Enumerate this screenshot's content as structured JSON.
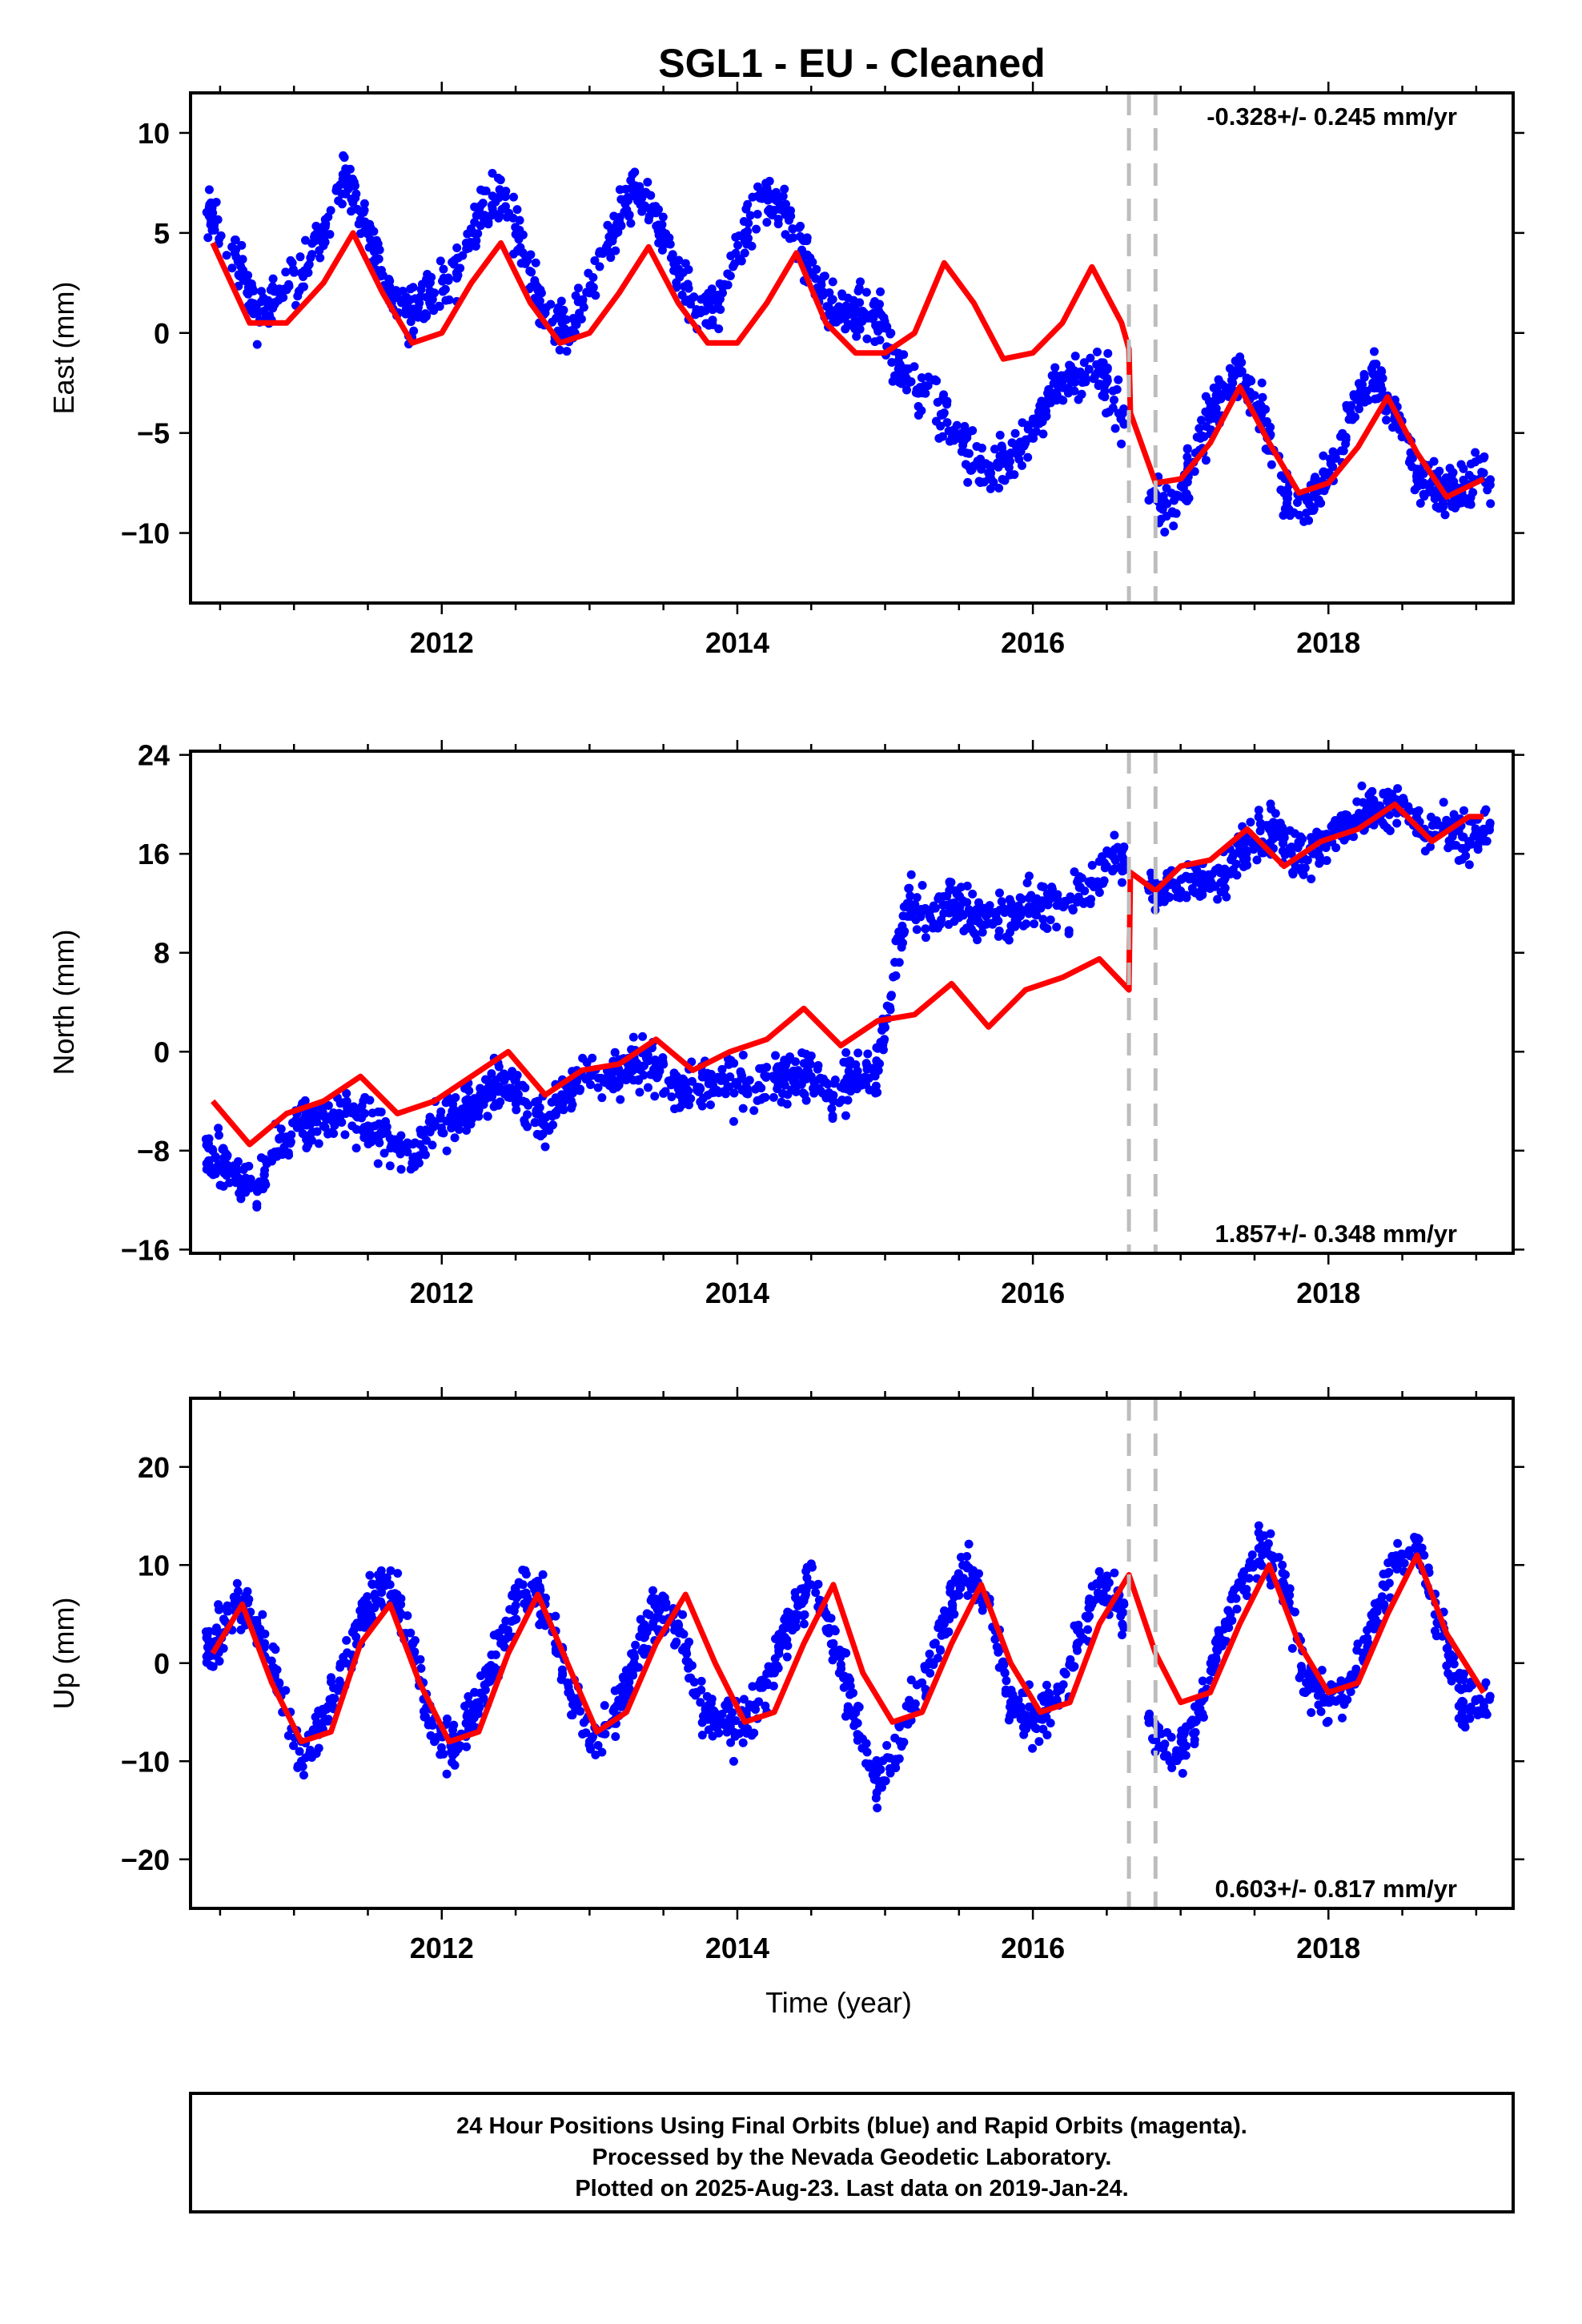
{
  "title": "SGL1  - EU - Cleaned",
  "colors": {
    "observed": "#0000ff",
    "model": "#ff0000",
    "offset_line": "#bdbdbd"
  },
  "footer": {
    "lines": [
      "24 Hour Positions Using Final Orbits (blue) and Rapid Orbits (magenta).",
      "Processed by the Nevada Geodetic Laboratory.",
      "Plotted on 2025-Aug-23. Last data on 2019-Jan-24."
    ]
  },
  "chart_data": [
    {
      "type": "scatter",
      "name": "east",
      "ylabel": "East (mm)",
      "xlabel": "",
      "xlim": [
        2010.3,
        2019.25
      ],
      "ylim": [
        -13.5,
        12
      ],
      "x_ticks": [
        2012,
        2014,
        2016,
        2018
      ],
      "y_ticks": [
        10,
        5,
        0,
        -5,
        -10
      ],
      "rate_label": "-0.328+/- 0.245 mm/yr",
      "rate_position": "top-right",
      "offset_lines_x": [
        2016.65,
        2016.83
      ],
      "series": [
        {
          "role": "observed daily positions (blue dots)",
          "x": [
            2010.45,
            2010.6,
            2010.75,
            2010.9,
            2011.05,
            2011.2,
            2011.35,
            2011.5,
            2011.65,
            2011.8,
            2011.95,
            2012.1,
            2012.25,
            2012.4,
            2012.55,
            2012.7,
            2012.85,
            2013.0,
            2013.15,
            2013.3,
            2013.45,
            2013.6,
            2013.75,
            2013.9,
            2014.05,
            2014.2,
            2014.35,
            2014.5,
            2014.65,
            2014.8,
            2014.95,
            2015.1,
            2015.25,
            2015.4,
            2015.55,
            2015.7,
            2015.85,
            2016.0,
            2016.15,
            2016.3,
            2016.45,
            2016.6,
            2016.8,
            2016.95,
            2017.1,
            2017.25,
            2017.4,
            2017.55,
            2017.7,
            2017.85,
            2018.0,
            2018.15,
            2018.3,
            2018.45,
            2018.6,
            2018.75,
            2018.9,
            2019.05
          ],
          "y": [
            6,
            4,
            1,
            2,
            3,
            5,
            8,
            5,
            2,
            1,
            2,
            3,
            6,
            7,
            4,
            1,
            0,
            2,
            5,
            7,
            6,
            3,
            1,
            2,
            5,
            7,
            6,
            3,
            1,
            1,
            1,
            -2,
            -3,
            -4,
            -6,
            -7,
            -6,
            -5,
            -3,
            -2,
            -2,
            -4,
            -8,
            -9,
            -6,
            -3,
            -2,
            -4,
            -8,
            -9,
            -7,
            -4,
            -2,
            -4,
            -7,
            -8,
            -8,
            -7
          ]
        },
        {
          "role": "model fit (red line)",
          "x": [
            2010.45,
            2010.7,
            2010.95,
            2011.2,
            2011.4,
            2011.6,
            2011.8,
            2012.0,
            2012.2,
            2012.4,
            2012.6,
            2012.8,
            2013.0,
            2013.2,
            2013.4,
            2013.6,
            2013.8,
            2014.0,
            2014.2,
            2014.4,
            2014.6,
            2014.8,
            2015.0,
            2015.2,
            2015.4,
            2015.6,
            2015.8,
            2016.0,
            2016.2,
            2016.4,
            2016.6,
            2016.65,
            2016.66,
            2016.83,
            2017.0,
            2017.2,
            2017.4,
            2017.6,
            2017.8,
            2018.0,
            2018.2,
            2018.4,
            2018.6,
            2018.8,
            2019.05
          ],
          "y": [
            4.5,
            0.5,
            0.5,
            2.5,
            5,
            2,
            -0.5,
            0,
            2.5,
            4.5,
            1.5,
            -0.5,
            0,
            2,
            4.3,
            1.5,
            -0.5,
            -0.5,
            1.5,
            4,
            0.5,
            -1,
            -1,
            0,
            3.5,
            1.5,
            -1.3,
            -1,
            0.5,
            3.3,
            0.5,
            -0.8,
            -4,
            -7.5,
            -7.3,
            -5.5,
            -2.7,
            -5.5,
            -8,
            -7.5,
            -5.7,
            -3.2,
            -6,
            -8.2,
            -7.3
          ]
        }
      ]
    },
    {
      "type": "scatter",
      "name": "north",
      "ylabel": "North (mm)",
      "xlabel": "",
      "xlim": [
        2010.3,
        2019.25
      ],
      "ylim": [
        -16.3,
        24.3
      ],
      "x_ticks": [
        2012,
        2014,
        2016,
        2018
      ],
      "y_ticks": [
        24,
        16,
        8,
        0,
        -8,
        -16
      ],
      "rate_label": "1.857+/- 0.348 mm/yr",
      "rate_position": "bottom-right",
      "offset_lines_x": [
        2016.65,
        2016.83
      ],
      "series": [
        {
          "role": "observed daily positions (blue dots)",
          "x": [
            2010.45,
            2010.6,
            2010.75,
            2010.9,
            2011.05,
            2011.2,
            2011.35,
            2011.5,
            2011.65,
            2011.8,
            2011.95,
            2012.1,
            2012.25,
            2012.4,
            2012.55,
            2012.7,
            2012.85,
            2013.0,
            2013.15,
            2013.3,
            2013.45,
            2013.6,
            2013.75,
            2013.9,
            2014.05,
            2014.2,
            2014.35,
            2014.5,
            2014.65,
            2014.8,
            2014.95,
            2015.15,
            2015.3,
            2015.45,
            2015.6,
            2015.75,
            2015.9,
            2016.05,
            2016.2,
            2016.35,
            2016.5,
            2016.6,
            2016.85,
            2017.0,
            2017.15,
            2017.3,
            2017.45,
            2017.6,
            2017.75,
            2017.9,
            2018.05,
            2018.2,
            2018.35,
            2018.5,
            2018.65,
            2018.8,
            2018.95,
            2019.05
          ],
          "y": [
            -8,
            -10,
            -11,
            -7,
            -6,
            -6,
            -5,
            -6,
            -7,
            -9,
            -6,
            -5,
            -4,
            -2,
            -4,
            -6,
            -3,
            -2,
            -2,
            -1,
            -1,
            -3,
            -3,
            -2,
            -3,
            -2,
            -2,
            -2,
            -4,
            -2,
            -1,
            12,
            11,
            12,
            11,
            11,
            11,
            12,
            12,
            13,
            15,
            16,
            13,
            13,
            14,
            14,
            17,
            18,
            16,
            16,
            18,
            19,
            19,
            20,
            18,
            18,
            17,
            18
          ]
        },
        {
          "role": "model fit (red line)",
          "x": [
            2010.45,
            2010.7,
            2010.95,
            2011.2,
            2011.45,
            2011.7,
            2011.95,
            2012.2,
            2012.45,
            2012.7,
            2012.95,
            2013.2,
            2013.45,
            2013.7,
            2013.95,
            2014.2,
            2014.45,
            2014.7,
            2014.95,
            2015.2,
            2015.45,
            2015.7,
            2015.95,
            2016.2,
            2016.45,
            2016.65,
            2016.66,
            2016.83,
            2017.0,
            2017.2,
            2017.45,
            2017.7,
            2017.95,
            2018.2,
            2018.45,
            2018.7,
            2018.95,
            2019.05
          ],
          "y": [
            -4,
            -7.5,
            -5,
            -4,
            -2,
            -5,
            -4,
            -2,
            0,
            -3.5,
            -1.5,
            -1,
            1,
            -1.5,
            0,
            1,
            3.5,
            0.5,
            2.5,
            3,
            5.5,
            2,
            5,
            6,
            7.5,
            5,
            14.5,
            13,
            15,
            15.5,
            18,
            15,
            17,
            18,
            20,
            17,
            19,
            19
          ]
        }
      ]
    },
    {
      "type": "scatter",
      "name": "up",
      "ylabel": "Up (mm)",
      "xlabel": "Time (year)",
      "xlim": [
        2010.3,
        2019.25
      ],
      "ylim": [
        -25,
        27
      ],
      "x_ticks": [
        2012,
        2014,
        2016,
        2018
      ],
      "y_ticks": [
        20,
        10,
        0,
        -10,
        -20
      ],
      "rate_label": "0.603+/- 0.817 mm/yr",
      "rate_position": "bottom-right",
      "offset_lines_x": [
        2016.65,
        2016.83
      ],
      "series": [
        {
          "role": "observed daily positions (blue dots)",
          "x": [
            2010.45,
            2010.6,
            2010.75,
            2010.9,
            2011.05,
            2011.2,
            2011.35,
            2011.5,
            2011.65,
            2011.8,
            2011.95,
            2012.1,
            2012.25,
            2012.4,
            2012.55,
            2012.7,
            2012.85,
            2013.0,
            2013.15,
            2013.3,
            2013.45,
            2013.6,
            2013.75,
            2013.9,
            2014.05,
            2014.2,
            2014.35,
            2014.5,
            2014.65,
            2014.8,
            2014.95,
            2015.1,
            2015.25,
            2015.4,
            2015.55,
            2015.7,
            2015.85,
            2016.0,
            2016.15,
            2016.3,
            2016.45,
            2016.6,
            2016.8,
            2016.95,
            2017.1,
            2017.25,
            2017.4,
            2017.55,
            2017.7,
            2017.85,
            2018.0,
            2018.15,
            2018.3,
            2018.45,
            2018.6,
            2018.75,
            2018.9,
            2019.05
          ],
          "y": [
            2,
            6,
            4,
            -2,
            -10,
            -6,
            0,
            6,
            8,
            2,
            -8,
            -8,
            -4,
            2,
            8,
            6,
            -2,
            -8,
            -6,
            0,
            6,
            4,
            -4,
            -6,
            -6,
            -2,
            4,
            8,
            2,
            -6,
            -12,
            -8,
            -2,
            4,
            10,
            6,
            -4,
            -6,
            -4,
            2,
            8,
            6,
            -6,
            -10,
            -6,
            2,
            8,
            12,
            8,
            -2,
            -4,
            -2,
            4,
            10,
            12,
            4,
            -4,
            -4
          ]
        },
        {
          "role": "model fit (red line)",
          "x": [
            2010.45,
            2010.65,
            2010.85,
            2011.05,
            2011.25,
            2011.45,
            2011.65,
            2011.85,
            2012.05,
            2012.25,
            2012.45,
            2012.65,
            2012.85,
            2013.05,
            2013.25,
            2013.45,
            2013.65,
            2013.85,
            2014.05,
            2014.25,
            2014.45,
            2014.65,
            2014.85,
            2015.05,
            2015.25,
            2015.45,
            2015.65,
            2015.85,
            2016.05,
            2016.25,
            2016.45,
            2016.65,
            2016.83,
            2017.0,
            2017.2,
            2017.4,
            2017.6,
            2017.8,
            2018.0,
            2018.2,
            2018.4,
            2018.6,
            2018.8,
            2019.05
          ],
          "y": [
            1,
            6,
            -2,
            -8,
            -7,
            2,
            6,
            -2,
            -8,
            -7,
            1,
            7,
            0,
            -7,
            -5,
            2,
            7,
            0,
            -6,
            -5,
            2,
            8,
            -1,
            -6,
            -5,
            2,
            8,
            0,
            -5,
            -4,
            4,
            9,
            1,
            -4,
            -3,
            4,
            10,
            2,
            -3,
            -2,
            5,
            11,
            3,
            -3
          ]
        }
      ]
    }
  ]
}
